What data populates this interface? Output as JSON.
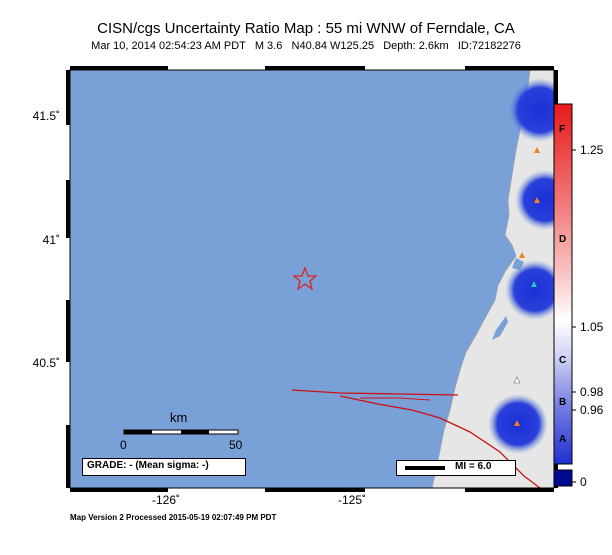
{
  "title": "CISN/cgs Uncertainty Ratio Map : 55 mi WNW of Ferndale, CA",
  "subtitle": "Mar 10, 2014 02:54:23 AM PDT   M 3.6   N40.84 W125.25   Depth: 2.6km   ID:72182276",
  "footer": "Map Version 2 Processed 2015-05-19 02:07:49 PM PDT",
  "axes": {
    "y_ticks": [
      "41.5˚",
      "41˚",
      "40.5˚"
    ],
    "x_ticks": [
      "-126˚",
      "-125˚"
    ]
  },
  "scale_bar": {
    "unit": "km",
    "start": "0",
    "end": "50"
  },
  "grade_box": "GRADE: - (Mean sigma: -)",
  "legend": {
    "mi_label": "MI = 6.0"
  },
  "colorbar": {
    "ticks": [
      "1.25",
      "1.05",
      "0.98",
      "0.96",
      "0"
    ],
    "letters": [
      "F",
      "D",
      "C",
      "B",
      "A"
    ]
  },
  "colors": {
    "ocean": "#7aa0d8",
    "land": "#e6e6e6",
    "high_uncertainty": "#1a2fd6",
    "fault": "#cc1111",
    "epicenter": "#dd2222",
    "station_orange": "#f08020",
    "station_cyan": "#22c4c4"
  }
}
